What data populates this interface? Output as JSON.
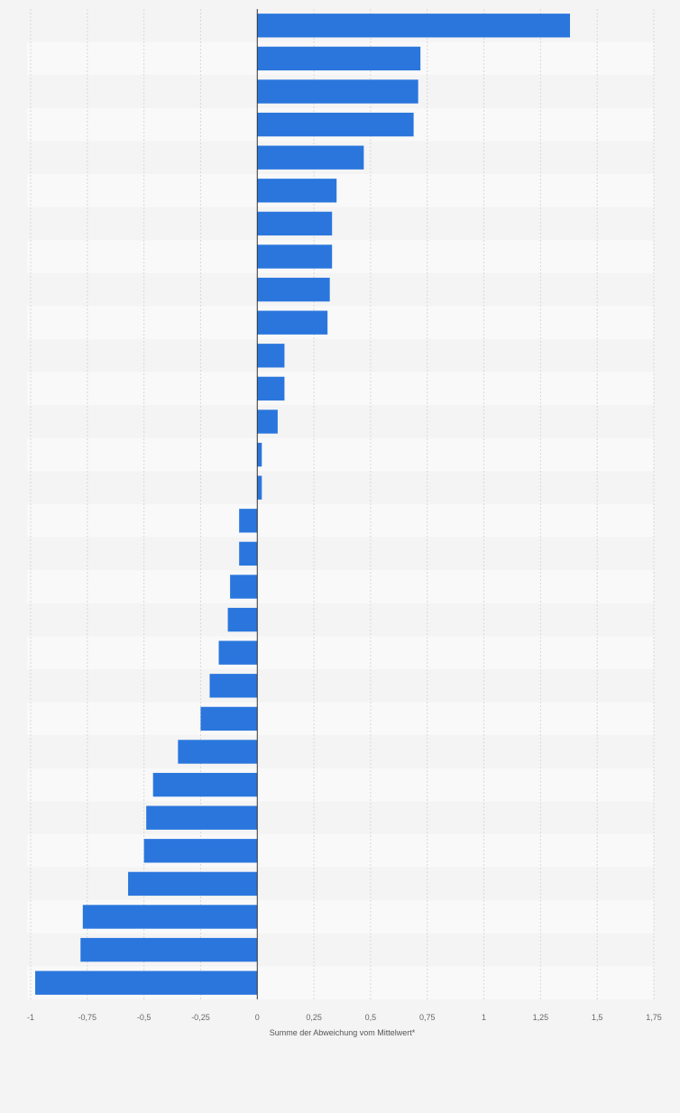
{
  "chart_data": {
    "type": "bar",
    "orientation": "horizontal",
    "xlabel": "Summe der Abweichung vom Mittelwert*",
    "xlim": [
      -1,
      1.75
    ],
    "xticks": [
      -1,
      -0.75,
      -0.5,
      -0.25,
      0,
      0.25,
      0.5,
      0.75,
      1,
      1.25,
      1.5,
      1.75
    ],
    "xtick_labels": [
      "-1",
      "-0,75",
      "-0,5",
      "-0,25",
      "0",
      "0,25",
      "0,5",
      "0,75",
      "1",
      "1,25",
      "1,5",
      "1,75"
    ],
    "categories": [
      "",
      "",
      "",
      "",
      "",
      "",
      "",
      "",
      "",
      "",
      "",
      "",
      "",
      "",
      "",
      "",
      "",
      "",
      "",
      "",
      "",
      "",
      "",
      "",
      "",
      "",
      "",
      "",
      "",
      ""
    ],
    "values": [
      1.38,
      0.72,
      0.71,
      0.69,
      0.47,
      0.35,
      0.33,
      0.33,
      0.32,
      0.31,
      0.12,
      0.12,
      0.09,
      0.02,
      0.02,
      -0.08,
      -0.08,
      -0.12,
      -0.13,
      -0.17,
      -0.21,
      -0.25,
      -0.35,
      -0.46,
      -0.49,
      -0.5,
      -0.57,
      -0.77,
      -0.78,
      -0.98
    ],
    "grid": true,
    "bar_color": "#2a76dd"
  }
}
